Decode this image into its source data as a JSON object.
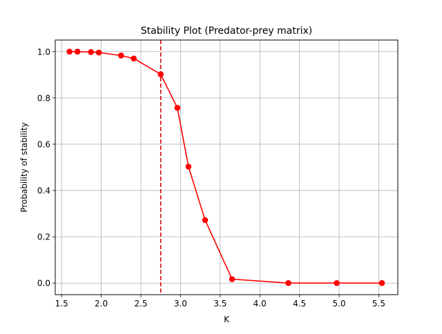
{
  "chart_data": {
    "type": "line",
    "title": "Stability Plot (Predator-prey matrix)",
    "xlabel": "K",
    "ylabel": "Probability of stability",
    "xlim": [
      1.42,
      5.74
    ],
    "ylim": [
      -0.05,
      1.05
    ],
    "xticks": [
      1.5,
      2.0,
      2.5,
      3.0,
      3.5,
      4.0,
      4.5,
      5.0,
      5.5
    ],
    "xtick_labels": [
      "1.5",
      "2.0",
      "2.5",
      "3.0",
      "3.5",
      "4.0",
      "4.5",
      "5.0",
      "5.5"
    ],
    "yticks": [
      0.0,
      0.2,
      0.4,
      0.6,
      0.8,
      1.0
    ],
    "ytick_labels": [
      "0.0",
      "0.2",
      "0.4",
      "0.6",
      "0.8",
      "1.0"
    ],
    "grid": true,
    "series": [
      {
        "color": "#ff0000",
        "marker": "circle",
        "x": [
          1.6,
          1.7,
          1.87,
          1.97,
          2.25,
          2.41,
          2.75,
          2.96,
          3.1,
          3.31,
          3.65,
          4.36,
          4.97,
          5.54
        ],
        "y": [
          1.0,
          1.0,
          0.998,
          0.996,
          0.983,
          0.97,
          0.902,
          0.757,
          0.503,
          0.272,
          0.017,
          0.0,
          0.0,
          0.0
        ]
      }
    ],
    "vline": {
      "x": 2.75,
      "color": "#cc0000",
      "style": "dashed"
    }
  }
}
